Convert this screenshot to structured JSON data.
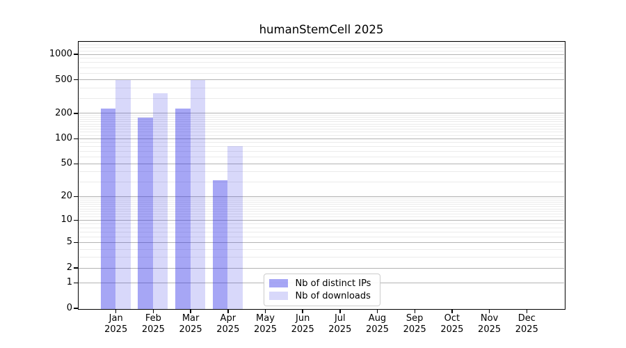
{
  "title": "humanStemCell 2025",
  "chart_data": {
    "type": "bar",
    "title": "humanStemCell 2025",
    "categories": [
      "Jan",
      "Feb",
      "Mar",
      "Apr",
      "May",
      "Jun",
      "Jul",
      "Aug",
      "Sep",
      "Oct",
      "Nov",
      "Dec"
    ],
    "x_tick_second_line": "2025",
    "series": [
      {
        "name": "Nb of distinct IPs",
        "color": "rgba(40,40,230,0.41)",
        "values": [
          230,
          180,
          230,
          32,
          null,
          null,
          null,
          null,
          null,
          null,
          null,
          null
        ]
      },
      {
        "name": "Nb of downloads",
        "color": "rgba(40,40,230,0.18)",
        "values": [
          500,
          350,
          500,
          82,
          null,
          null,
          null,
          null,
          null,
          null,
          null,
          null
        ]
      }
    ],
    "yscale": "log10(1+v)",
    "ylim": [
      0,
      1410
    ],
    "y_ticks": [
      0,
      1,
      2,
      5,
      10,
      20,
      50,
      100,
      200,
      500,
      1000
    ],
    "y_minor_gridlines": [
      3,
      4,
      6,
      7,
      8,
      9,
      11,
      12,
      13,
      14,
      15,
      16,
      17,
      18,
      19,
      30,
      40,
      60,
      70,
      80,
      90,
      110,
      120,
      130,
      140,
      150,
      160,
      170,
      180,
      190,
      300,
      400,
      600,
      700,
      800,
      900,
      1100,
      1200,
      1300,
      1400
    ],
    "grid": true,
    "legend_position": "inside-lower-center"
  },
  "colors": {
    "background": "#ffffff",
    "axis": "#000000",
    "grid_major": "#b3b3b3",
    "grid_minor": "#ebebeb",
    "bar_distinct_ips": "rgba(40,40,230,0.41)",
    "bar_downloads": "rgba(40,40,230,0.18)",
    "text": "#000000"
  }
}
